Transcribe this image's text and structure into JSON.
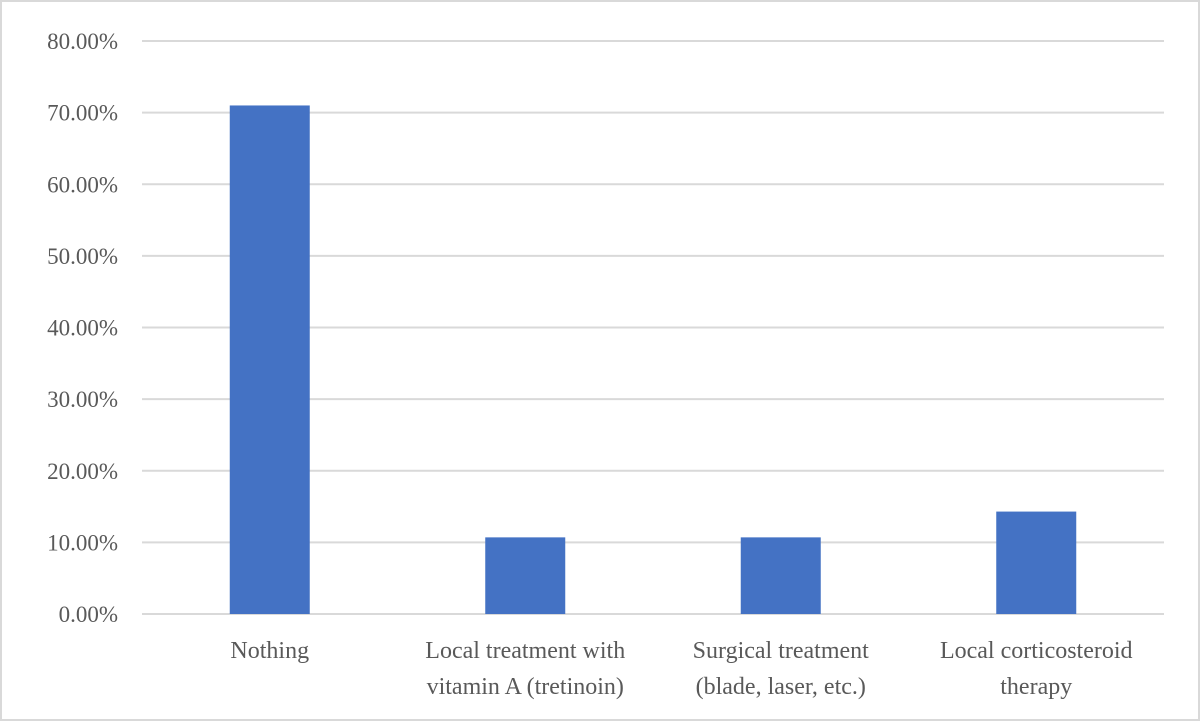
{
  "chart_data": {
    "type": "bar",
    "title": "",
    "xlabel": "",
    "ylabel": "",
    "categories": [
      [
        "Nothing"
      ],
      [
        "Local treatment with",
        "vitamin A (tretinoin)"
      ],
      [
        "Surgical treatment",
        "(blade, laser, etc.)"
      ],
      [
        "Local corticosteroid",
        "therapy"
      ]
    ],
    "series": [
      {
        "name": "Series 1",
        "values": [
          71.0,
          10.7,
          10.7,
          14.3
        ]
      }
    ],
    "ylim": [
      0,
      80
    ],
    "yticks": [
      0,
      10,
      20,
      30,
      40,
      50,
      60,
      70,
      80
    ],
    "ytick_labels": [
      "0.00%",
      "10.00%",
      "20.00%",
      "30.00%",
      "40.00%",
      "50.00%",
      "60.00%",
      "70.00%",
      "80.00%"
    ],
    "grid": true,
    "legend": "none",
    "bar_color": "#4472c4",
    "grid_color": "#d9d9d9"
  }
}
